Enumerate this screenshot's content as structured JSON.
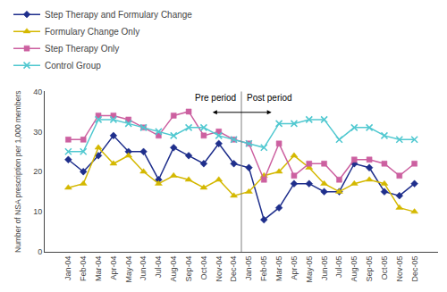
{
  "chart_data": {
    "type": "line",
    "categories": [
      "Jan-04",
      "Feb-04",
      "Mar-04",
      "Apr-04",
      "May-04",
      "Jun-04",
      "Jul-04",
      "Aug-04",
      "Sep-04",
      "Oct-04",
      "Nov-04",
      "Dec-04",
      "Jan-05",
      "Feb-05",
      "Mar-05",
      "Apr-05",
      "May-05",
      "Jun-05",
      "Jul-05",
      "Aug-05",
      "Sep-05",
      "Oct-05",
      "Nov-05",
      "Dec-05"
    ],
    "series": [
      {
        "name": "Step Therapy and Formulary Change",
        "color": "#1f2f8c",
        "marker": "diamond",
        "values": [
          23,
          20,
          24,
          29,
          25,
          25,
          18,
          26,
          24,
          22,
          27,
          22,
          21,
          8,
          11,
          17,
          17,
          15,
          15,
          22,
          21,
          15,
          14,
          17
        ]
      },
      {
        "name": "Formulary Change Only",
        "color": "#d4b800",
        "marker": "triangle",
        "values": [
          16,
          17,
          26,
          22,
          24,
          20,
          17,
          19,
          18,
          16,
          18,
          14,
          15,
          19,
          20,
          24,
          21,
          17,
          15,
          17,
          18,
          17,
          11,
          10
        ]
      },
      {
        "name": "Step Therapy Only",
        "color": "#cc60a0",
        "marker": "square",
        "values": [
          28,
          28,
          34,
          34,
          33,
          31,
          29,
          34,
          35,
          29,
          30,
          28,
          27,
          18,
          27,
          19,
          22,
          22,
          18,
          23,
          23,
          22,
          19,
          22
        ]
      },
      {
        "name": "Control Group",
        "color": "#50c8d0",
        "marker": "x",
        "values": [
          25,
          25,
          33,
          33,
          32,
          31,
          30,
          29,
          31,
          31,
          29,
          28,
          27,
          26,
          32,
          32,
          33,
          33,
          28,
          31,
          31,
          29,
          28,
          28
        ]
      }
    ],
    "ylabel": "Number of NSA prescription per 1,000 members",
    "ylim": [
      0,
      40
    ],
    "yticks": [
      0,
      10,
      20,
      30,
      40
    ],
    "grid": false,
    "legend": "top",
    "annotations": [
      {
        "text": "Pre period",
        "category": "Dec-04"
      },
      {
        "text": "Post period",
        "category": "Jan-05"
      }
    ]
  }
}
